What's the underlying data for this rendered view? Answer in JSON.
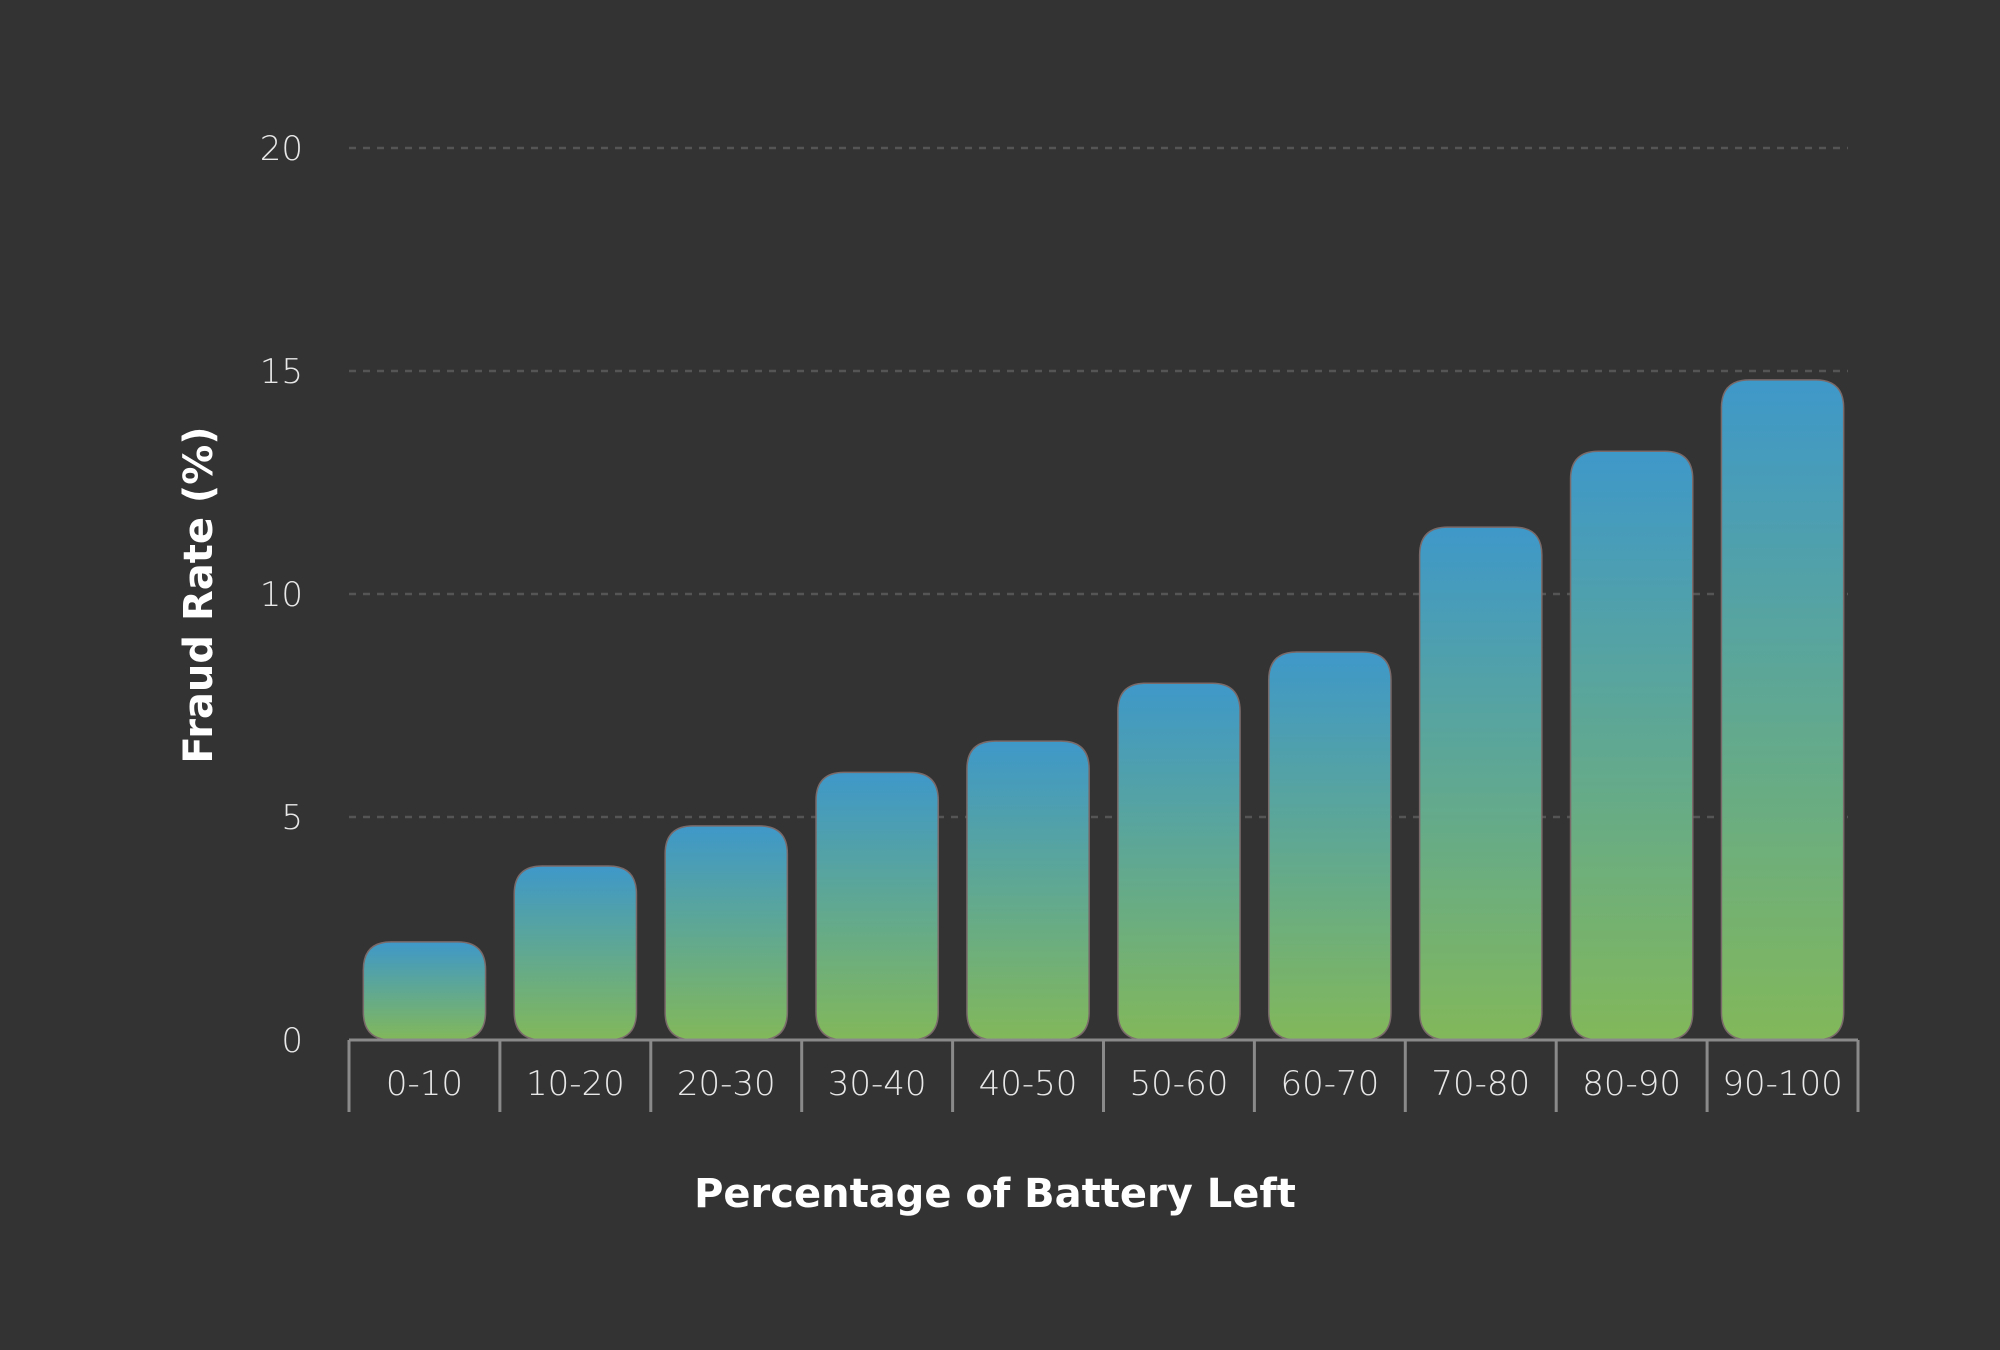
{
  "chart_data": {
    "type": "bar",
    "title": "",
    "xlabel": "Percentage of Battery Left",
    "ylabel": "Fraud Rate (%)",
    "categories": [
      "0-10",
      "10-20",
      "20-30",
      "30-40",
      "40-50",
      "50-60",
      "60-70",
      "70-80",
      "80-90",
      "90-100"
    ],
    "values": [
      2.2,
      3.9,
      4.8,
      6.0,
      6.7,
      8.0,
      8.7,
      11.5,
      13.2,
      14.8
    ],
    "ylim": [
      0,
      20
    ],
    "yticks": [
      0,
      5,
      10,
      15,
      20
    ],
    "grid": true,
    "colors": {
      "bar_top": "#3e98c9",
      "bar_bottom": "#82b85a",
      "background": "#333333"
    }
  }
}
